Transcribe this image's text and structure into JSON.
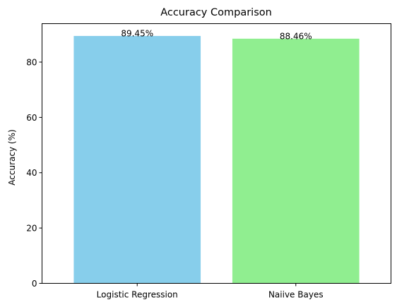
{
  "chart_data": {
    "type": "bar",
    "title": "Accuracy Comparison",
    "xlabel": "",
    "ylabel": "Accuracy (%)",
    "categories": [
      "Logistic Regression",
      "Naiive Bayes"
    ],
    "values": [
      89.45,
      88.46
    ],
    "data_labels": [
      "89.45%",
      "88.46%"
    ],
    "colors": [
      "#87CEEB",
      "#90EE90"
    ],
    "ylim": [
      0,
      93.9
    ],
    "yticks": [
      0,
      20,
      40,
      60,
      80
    ],
    "grid": false,
    "legend": "none"
  }
}
